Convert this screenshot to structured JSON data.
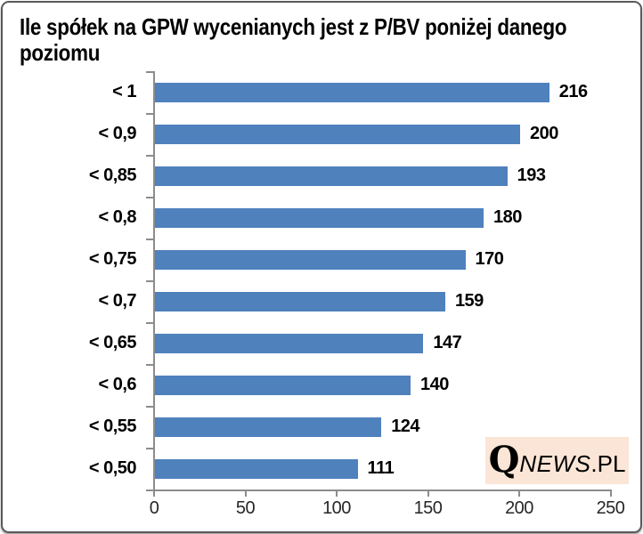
{
  "chart_data": {
    "type": "bar",
    "orientation": "horizontal",
    "title": "Ile spółek na GPW wycenianych jest z P/BV poniżej danego poziomu",
    "title_lines": [
      "Ile spółek na GPW wycenianych jest z P/BV poniżej danego",
      "poziomu"
    ],
    "categories": [
      "< 1",
      "< 0,9",
      "< 0,85",
      "< 0,8",
      "< 0,75",
      "< 0,7",
      "< 0,65",
      "< 0,6",
      "< 0,55",
      "< 0,50"
    ],
    "values": [
      216,
      200,
      193,
      180,
      170,
      159,
      147,
      140,
      124,
      111
    ],
    "value_labels": [
      "216",
      "200",
      "193",
      "180",
      "170",
      "159",
      "147",
      "140",
      "124",
      "111"
    ],
    "xlabel": "",
    "ylabel": "",
    "xlim": [
      0,
      250
    ],
    "x_ticks": [
      0,
      50,
      100,
      150,
      200,
      250
    ],
    "x_tick_labels": [
      "0",
      "50",
      "100",
      "150",
      "200",
      "250"
    ],
    "grid": false,
    "legend": false,
    "bar_color": "#4F81BD",
    "axis_color": "#8C8C8C",
    "label_color": "#000000"
  },
  "logo": {
    "q": "Q",
    "news": "NEWS",
    "pl": ".PL",
    "background": "#FBE5D6"
  }
}
